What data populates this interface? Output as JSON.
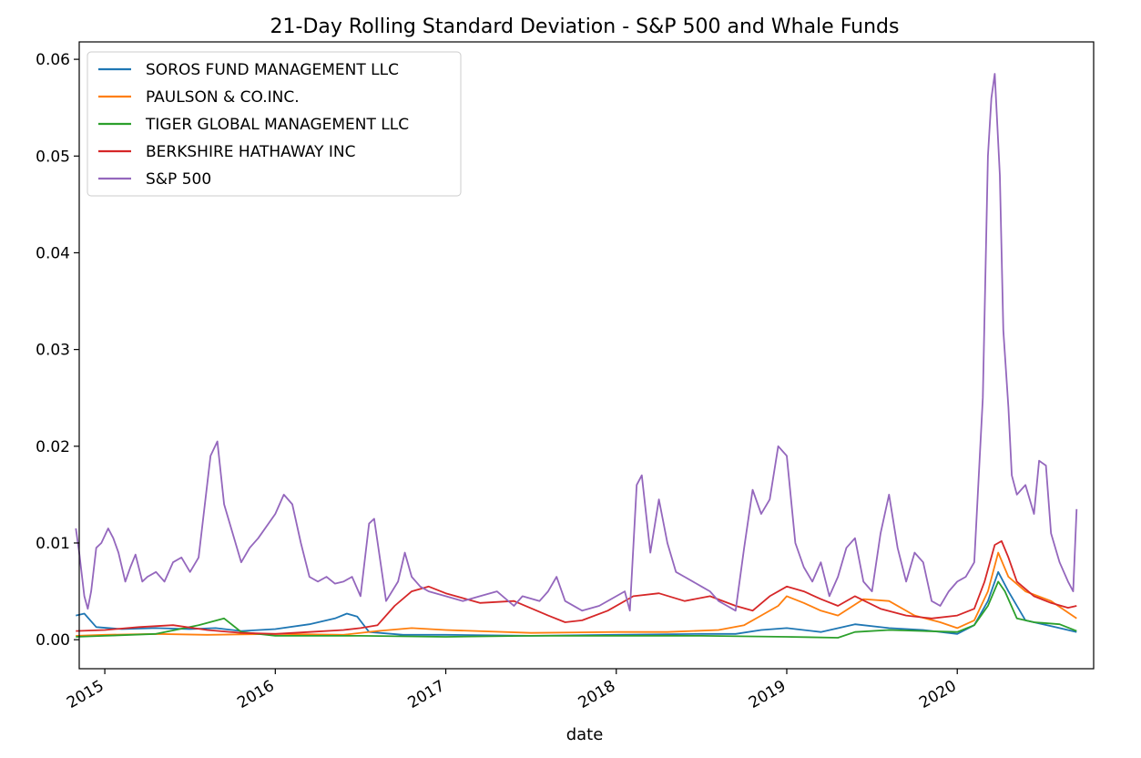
{
  "chart_data": {
    "type": "line",
    "title": "21-Day Rolling Standard Deviation - S&P 500 and Whale Funds",
    "xlabel": "date",
    "ylabel": "",
    "xlim": [
      2014.85,
      2020.8
    ],
    "ylim": [
      -0.003,
      0.0618
    ],
    "x_ticks": [
      2015,
      2016,
      2017,
      2018,
      2019,
      2020
    ],
    "x_tick_labels": [
      "2015",
      "2016",
      "2017",
      "2018",
      "2019",
      "2020"
    ],
    "y_ticks": [
      0.0,
      0.01,
      0.02,
      0.03,
      0.04,
      0.05,
      0.06
    ],
    "y_tick_labels": [
      "0.00",
      "0.01",
      "0.02",
      "0.03",
      "0.04",
      "0.05",
      "0.06"
    ],
    "legend_position": "top-left",
    "series": [
      {
        "name": "SOROS FUND MANAGEMENT LLC",
        "color": "#1f77b4",
        "x": [
          2014.83,
          2014.88,
          2014.95,
          2015.1,
          2015.3,
          2015.5,
          2015.65,
          2015.8,
          2016.0,
          2016.2,
          2016.35,
          2016.42,
          2016.48,
          2016.55,
          2016.75,
          2017.0,
          2017.5,
          2018.0,
          2018.5,
          2018.7,
          2018.85,
          2019.0,
          2019.2,
          2019.4,
          2019.6,
          2019.8,
          2020.0,
          2020.1,
          2020.18,
          2020.24,
          2020.3,
          2020.4,
          2020.6,
          2020.7
        ],
        "values": [
          0.0025,
          0.0027,
          0.0013,
          0.0011,
          0.0012,
          0.0011,
          0.0012,
          0.0009,
          0.0011,
          0.0016,
          0.0022,
          0.0027,
          0.0024,
          0.0008,
          0.0005,
          0.0005,
          0.0004,
          0.0005,
          0.0006,
          0.0006,
          0.001,
          0.0012,
          0.0008,
          0.0016,
          0.0012,
          0.001,
          0.0006,
          0.0015,
          0.004,
          0.007,
          0.005,
          0.002,
          0.0012,
          0.0008
        ]
      },
      {
        "name": "PAULSON & CO.INC.",
        "color": "#ff7f0e",
        "x": [
          2014.83,
          2015.0,
          2015.3,
          2015.6,
          2016.0,
          2016.4,
          2016.6,
          2016.8,
          2017.0,
          2017.5,
          2018.0,
          2018.3,
          2018.6,
          2018.75,
          2018.85,
          2018.95,
          2019.0,
          2019.1,
          2019.2,
          2019.3,
          2019.45,
          2019.6,
          2019.75,
          2019.9,
          2020.0,
          2020.1,
          2020.18,
          2020.24,
          2020.3,
          2020.4,
          2020.55,
          2020.7
        ],
        "values": [
          0.0004,
          0.0005,
          0.0006,
          0.0005,
          0.0006,
          0.0005,
          0.0009,
          0.0012,
          0.001,
          0.0007,
          0.0008,
          0.0008,
          0.001,
          0.0015,
          0.0025,
          0.0035,
          0.0045,
          0.0038,
          0.003,
          0.0025,
          0.0042,
          0.004,
          0.0025,
          0.0018,
          0.0012,
          0.002,
          0.005,
          0.009,
          0.0065,
          0.005,
          0.004,
          0.0022
        ]
      },
      {
        "name": "TIGER GLOBAL MANAGEMENT LLC",
        "color": "#2ca02c",
        "x": [
          2014.83,
          2015.0,
          2015.3,
          2015.55,
          2015.7,
          2015.8,
          2016.0,
          2016.5,
          2017.0,
          2017.5,
          2018.0,
          2018.5,
          2019.0,
          2019.3,
          2019.4,
          2019.6,
          2019.8,
          2020.0,
          2020.1,
          2020.18,
          2020.24,
          2020.28,
          2020.35,
          2020.45,
          2020.6,
          2020.7
        ],
        "values": [
          0.0003,
          0.0004,
          0.0006,
          0.0015,
          0.0022,
          0.0008,
          0.0004,
          0.0004,
          0.0003,
          0.0004,
          0.0004,
          0.0004,
          0.0003,
          0.0002,
          0.0008,
          0.001,
          0.0009,
          0.0008,
          0.0015,
          0.0035,
          0.006,
          0.005,
          0.0022,
          0.0018,
          0.0016,
          0.0009
        ]
      },
      {
        "name": "BERKSHIRE HATHAWAY INC",
        "color": "#d62728",
        "x": [
          2014.83,
          2015.0,
          2015.2,
          2015.4,
          2015.6,
          2015.8,
          2016.0,
          2016.2,
          2016.4,
          2016.5,
          2016.6,
          2016.7,
          2016.8,
          2016.9,
          2017.0,
          2017.2,
          2017.4,
          2017.6,
          2017.7,
          2017.8,
          2017.95,
          2018.1,
          2018.25,
          2018.4,
          2018.55,
          2018.7,
          2018.8,
          2018.9,
          2019.0,
          2019.1,
          2019.2,
          2019.3,
          2019.4,
          2019.55,
          2019.7,
          2019.85,
          2020.0,
          2020.1,
          2020.16,
          2020.22,
          2020.26,
          2020.3,
          2020.35,
          2020.45,
          2020.55,
          2020.65,
          2020.7
        ],
        "values": [
          0.0009,
          0.001,
          0.0013,
          0.0015,
          0.001,
          0.0007,
          0.0006,
          0.0008,
          0.001,
          0.0012,
          0.0015,
          0.0035,
          0.005,
          0.0055,
          0.0048,
          0.0038,
          0.004,
          0.0025,
          0.0018,
          0.002,
          0.003,
          0.0045,
          0.0048,
          0.004,
          0.0045,
          0.0035,
          0.003,
          0.0045,
          0.0055,
          0.005,
          0.0042,
          0.0035,
          0.0045,
          0.0032,
          0.0025,
          0.0022,
          0.0025,
          0.0032,
          0.006,
          0.0098,
          0.0102,
          0.0085,
          0.006,
          0.0045,
          0.0038,
          0.0033,
          0.0035
        ]
      },
      {
        "name": "S&P 500",
        "color": "#9467bd",
        "x": [
          2014.83,
          2014.85,
          2014.88,
          2014.9,
          2014.92,
          2014.95,
          2014.98,
          2015.02,
          2015.05,
          2015.08,
          2015.12,
          2015.15,
          2015.18,
          2015.22,
          2015.25,
          2015.3,
          2015.35,
          2015.4,
          2015.45,
          2015.5,
          2015.55,
          2015.62,
          2015.66,
          2015.7,
          2015.75,
          2015.8,
          2015.85,
          2015.9,
          2016.0,
          2016.05,
          2016.1,
          2016.15,
          2016.2,
          2016.25,
          2016.3,
          2016.35,
          2016.4,
          2016.45,
          2016.5,
          2016.55,
          2016.58,
          2016.65,
          2016.72,
          2016.76,
          2016.8,
          2016.85,
          2016.9,
          2017.0,
          2017.1,
          2017.2,
          2017.3,
          2017.4,
          2017.45,
          2017.55,
          2017.6,
          2017.65,
          2017.7,
          2017.8,
          2017.9,
          2018.0,
          2018.05,
          2018.08,
          2018.12,
          2018.15,
          2018.2,
          2018.25,
          2018.3,
          2018.35,
          2018.4,
          2018.5,
          2018.55,
          2018.6,
          2018.65,
          2018.7,
          2018.75,
          2018.8,
          2018.85,
          2018.9,
          2018.95,
          2019.0,
          2019.05,
          2019.1,
          2019.15,
          2019.2,
          2019.25,
          2019.3,
          2019.35,
          2019.4,
          2019.45,
          2019.5,
          2019.55,
          2019.6,
          2019.65,
          2019.7,
          2019.75,
          2019.8,
          2019.85,
          2019.9,
          2019.95,
          2020.0,
          2020.05,
          2020.1,
          2020.15,
          2020.18,
          2020.2,
          2020.22,
          2020.25,
          2020.27,
          2020.3,
          2020.32,
          2020.35,
          2020.4,
          2020.45,
          2020.48,
          2020.52,
          2020.55,
          2020.6,
          2020.65,
          2020.68,
          2020.7
        ],
        "values": [
          0.0115,
          0.009,
          0.0045,
          0.0032,
          0.005,
          0.0095,
          0.01,
          0.0115,
          0.0105,
          0.009,
          0.006,
          0.0075,
          0.0088,
          0.006,
          0.0065,
          0.007,
          0.006,
          0.008,
          0.0085,
          0.007,
          0.0085,
          0.019,
          0.0205,
          0.014,
          0.011,
          0.008,
          0.0095,
          0.0105,
          0.013,
          0.015,
          0.014,
          0.01,
          0.0065,
          0.006,
          0.0065,
          0.0058,
          0.006,
          0.0065,
          0.0045,
          0.012,
          0.0125,
          0.004,
          0.006,
          0.009,
          0.0065,
          0.0055,
          0.005,
          0.0045,
          0.004,
          0.0045,
          0.005,
          0.0035,
          0.0045,
          0.004,
          0.005,
          0.0065,
          0.004,
          0.003,
          0.0035,
          0.0045,
          0.005,
          0.003,
          0.016,
          0.017,
          0.009,
          0.0145,
          0.01,
          0.007,
          0.0065,
          0.0055,
          0.005,
          0.004,
          0.0035,
          0.003,
          0.0095,
          0.0155,
          0.013,
          0.0145,
          0.02,
          0.019,
          0.01,
          0.0075,
          0.006,
          0.008,
          0.0045,
          0.0065,
          0.0095,
          0.0105,
          0.006,
          0.005,
          0.011,
          0.015,
          0.0095,
          0.006,
          0.009,
          0.008,
          0.004,
          0.0035,
          0.005,
          0.006,
          0.0065,
          0.008,
          0.025,
          0.05,
          0.056,
          0.0585,
          0.048,
          0.032,
          0.024,
          0.017,
          0.015,
          0.016,
          0.013,
          0.0185,
          0.018,
          0.011,
          0.008,
          0.006,
          0.005,
          0.0135
        ]
      }
    ]
  }
}
